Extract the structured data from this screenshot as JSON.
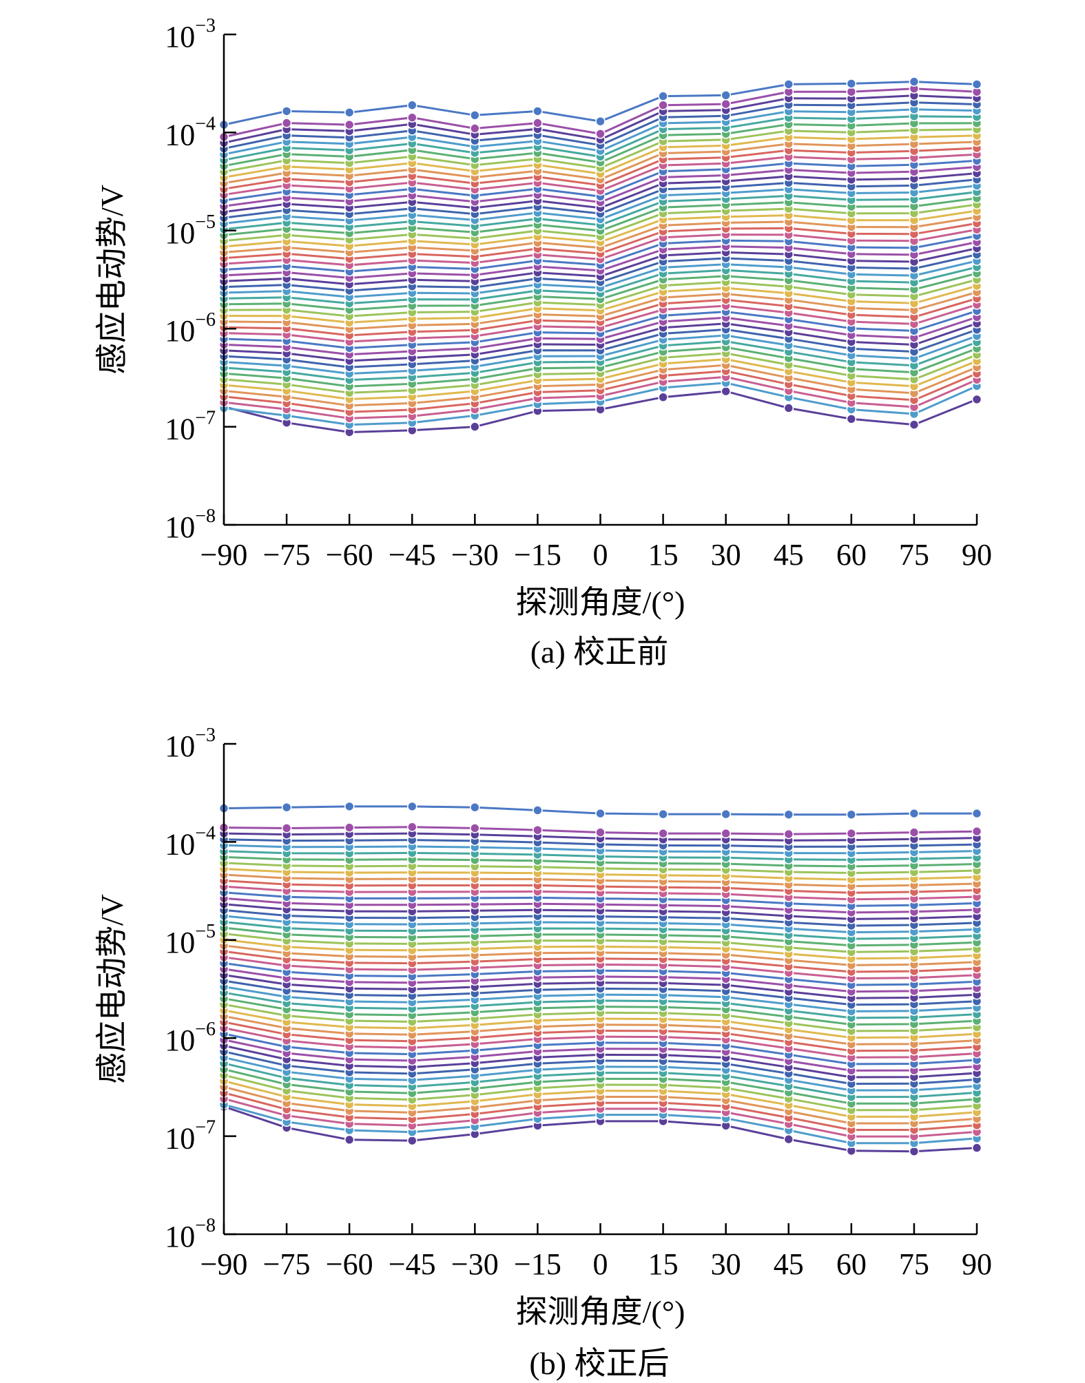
{
  "chart_data": [
    {
      "type": "line",
      "title": "",
      "caption": "(a) 校正前",
      "xlabel": "探测角度/(°)",
      "ylabel": "感应电动势/V",
      "yscale": "log",
      "ylim": [
        1e-08,
        0.001
      ],
      "yticks": [
        {
          "base": "10",
          "exp": "−8",
          "value": 1e-08
        },
        {
          "base": "10",
          "exp": "−7",
          "value": 1e-07
        },
        {
          "base": "10",
          "exp": "−6",
          "value": 1e-06
        },
        {
          "base": "10",
          "exp": "−5",
          "value": 1e-05
        },
        {
          "base": "10",
          "exp": "−4",
          "value": 0.0001
        },
        {
          "base": "10",
          "exp": "−3",
          "value": 0.001
        }
      ],
      "x": [
        -90,
        -75,
        -60,
        -45,
        -30,
        -15,
        0,
        15,
        30,
        45,
        60,
        75,
        90
      ],
      "xtick_labels": [
        "−90",
        "−75",
        "−60",
        "−45",
        "−30",
        "−15",
        "0",
        "15",
        "30",
        "45",
        "60",
        "75",
        "90"
      ],
      "series_count": 50,
      "palette": [
        "#4a78c4",
        "#9b4fa8",
        "#5a3f99",
        "#3f63ad",
        "#4e9ccc",
        "#45a8a0",
        "#5bb073",
        "#9cc35a",
        "#e0b84f",
        "#e0955a",
        "#d8665f",
        "#c85e91"
      ],
      "series": [
        {
          "values": [
            0.00012,
            0.000165,
            0.00016,
            0.00019,
            0.00015,
            0.000165,
            0.00013,
            0.000235,
            0.00024,
            0.00031,
            0.000315,
            0.00033,
            0.00031
          ]
        },
        {
          "values": [
            9e-05,
            0.000125,
            0.00012,
            0.000142,
            0.00011,
            0.000125,
            9.7e-05,
            0.00019,
            0.000195,
            0.00026,
            0.00026,
            0.00028,
            0.00026
          ]
        },
        {
          "values": [
            1.6e-07,
            1.1e-07,
            8.8e-08,
            9.2e-08,
            1e-07,
            1.45e-07,
            1.5e-07,
            2e-07,
            2.3e-07,
            1.55e-07,
            1.2e-07,
            1.05e-07,
            1.9e-07
          ]
        },
        {
          "values": [
            1.55e-07,
            1.3e-07,
            1.05e-07,
            1.1e-07,
            1.3e-07,
            1.7e-07,
            1.8e-07,
            2.5e-07,
            2.8e-07,
            2e-07,
            1.5e-07,
            1.35e-07,
            2.6e-07
          ]
        }
      ],
      "interpolation": "geometric"
    },
    {
      "type": "line",
      "title": "",
      "caption": "(b) 校正后",
      "xlabel": "探测角度/(°)",
      "ylabel": "感应电动势/V",
      "yscale": "log",
      "ylim": [
        1e-08,
        0.001
      ],
      "yticks": [
        {
          "base": "10",
          "exp": "−8",
          "value": 1e-08
        },
        {
          "base": "10",
          "exp": "−7",
          "value": 1e-07
        },
        {
          "base": "10",
          "exp": "−6",
          "value": 1e-06
        },
        {
          "base": "10",
          "exp": "−5",
          "value": 1e-05
        },
        {
          "base": "10",
          "exp": "−4",
          "value": 0.0001
        },
        {
          "base": "10",
          "exp": "−3",
          "value": 0.001
        }
      ],
      "x": [
        -90,
        -75,
        -60,
        -45,
        -30,
        -15,
        0,
        15,
        30,
        45,
        60,
        75,
        90
      ],
      "xtick_labels": [
        "−90",
        "−75",
        "−60",
        "−45",
        "−30",
        "−15",
        "0",
        "15",
        "30",
        "45",
        "60",
        "75",
        "90"
      ],
      "series_count": 50,
      "palette": [
        "#4a78c4",
        "#9b4fa8",
        "#5a3f99",
        "#3f63ad",
        "#4e9ccc",
        "#45a8a0",
        "#5bb073",
        "#9cc35a",
        "#e0b84f",
        "#e0955a",
        "#d8665f",
        "#c85e91"
      ],
      "series": [
        {
          "values": [
            0.00022,
            0.000225,
            0.00023,
            0.00023,
            0.000225,
            0.00021,
            0.000195,
            0.000192,
            0.000192,
            0.00019,
            0.00019,
            0.000195,
            0.000195
          ]
        },
        {
          "values": [
            0.00014,
            0.000138,
            0.00014,
            0.000142,
            0.000138,
            0.000132,
            0.000125,
            0.000122,
            0.000122,
            0.00012,
            0.000122,
            0.000125,
            0.000128
          ]
        },
        {
          "values": [
            2e-07,
            1.22e-07,
            9.2e-08,
            9e-08,
            1.05e-07,
            1.28e-07,
            1.42e-07,
            1.42e-07,
            1.28e-07,
            9.3e-08,
            7.1e-08,
            7e-08,
            7.6e-08
          ]
        },
        {
          "values": [
            2.1e-07,
            1.4e-07,
            1.15e-07,
            1.1e-07,
            1.25e-07,
            1.5e-07,
            1.65e-07,
            1.65e-07,
            1.52e-07,
            1.15e-07,
            8.5e-08,
            8.5e-08,
            9.5e-08
          ]
        }
      ],
      "interpolation": "geometric"
    }
  ]
}
